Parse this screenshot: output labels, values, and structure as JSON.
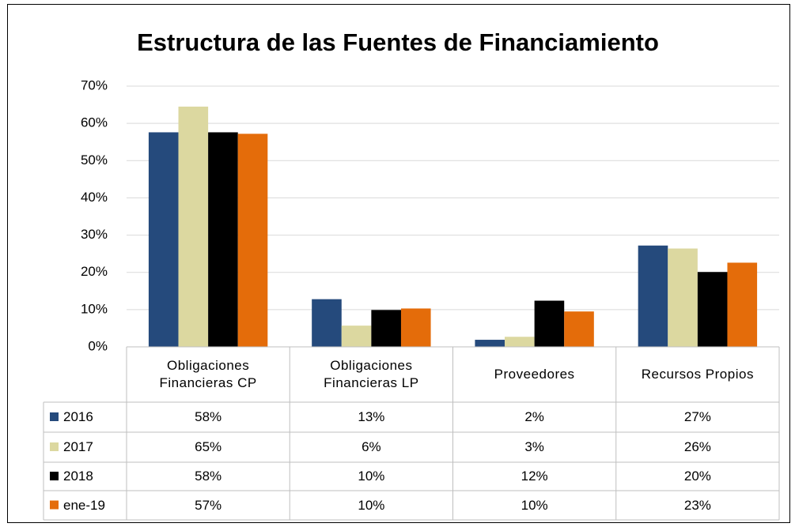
{
  "chart_data": {
    "type": "bar",
    "title": "Estructura de las Fuentes de Financiamiento",
    "categories": [
      "Obligaciones Financieras CP",
      "Obligaciones Financieras LP",
      "Proveedores",
      "Recursos Propios"
    ],
    "series": [
      {
        "name": "2016",
        "color": "#254a7c",
        "values": [
          57.6,
          12.8,
          1.9,
          27.2
        ],
        "value_labels": [
          "58%",
          "13%",
          "2%",
          "27%"
        ]
      },
      {
        "name": "2017",
        "color": "#dcd8a0",
        "values": [
          64.5,
          5.7,
          2.7,
          26.4
        ],
        "value_labels": [
          "65%",
          "6%",
          "3%",
          "26%"
        ]
      },
      {
        "name": "2018",
        "color": "#000000",
        "values": [
          57.6,
          9.9,
          12.4,
          20.1
        ],
        "value_labels": [
          "58%",
          "10%",
          "12%",
          "20%"
        ]
      },
      {
        "name": "ene-19",
        "color": "#e46c0a",
        "values": [
          57.2,
          10.3,
          9.5,
          22.6
        ],
        "value_labels": [
          "57%",
          "10%",
          "10%",
          "23%"
        ]
      }
    ],
    "ylim": [
      0,
      70
    ],
    "yticks": [
      {
        "value": 0,
        "label": "0%"
      },
      {
        "value": 10,
        "label": "10%"
      },
      {
        "value": 20,
        "label": "20%"
      },
      {
        "value": 30,
        "label": "30%"
      },
      {
        "value": 40,
        "label": "40%"
      },
      {
        "value": 50,
        "label": "50%"
      },
      {
        "value": 60,
        "label": "60%"
      },
      {
        "value": 70,
        "label": "70%"
      }
    ],
    "grid": true
  }
}
